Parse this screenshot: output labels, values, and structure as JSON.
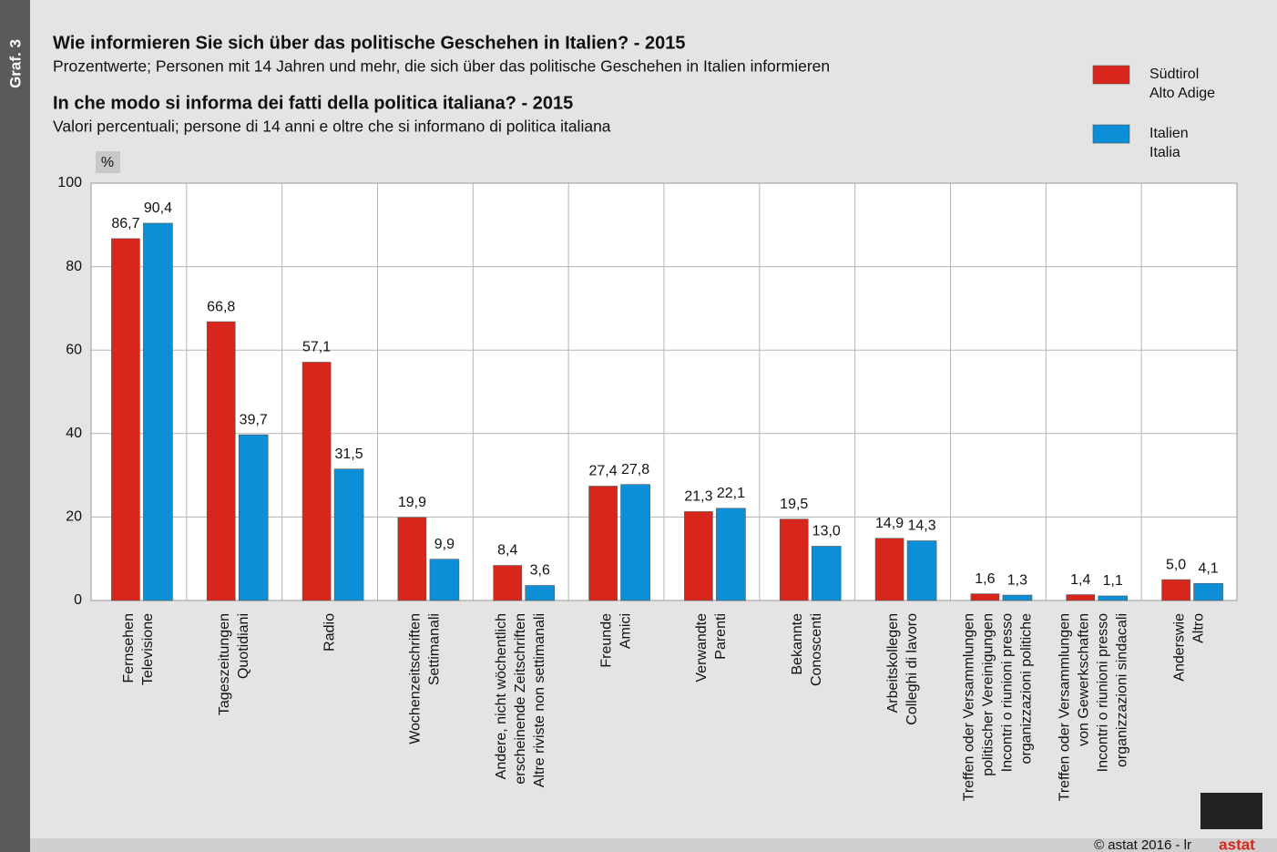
{
  "chart_data": {
    "type": "bar",
    "side_label": "Graf. 3",
    "title": "Wie informieren Sie sich über das politische Geschehen in Italien? - 2015",
    "subtitle": "Prozentwerte; Personen mit 14 Jahren und mehr, die sich über das politische Geschehen in Italien informieren",
    "title2": "In che modo si informa dei fatti della politica italiana? - 2015",
    "subtitle2": "Valori percentuali; persone di 14 anni e oltre che si informano di politica italiana",
    "y_label": "%",
    "footer": "© astat 2016 - lr",
    "logo": "astat",
    "categories": [
      [
        "Fernsehen",
        "Televisione"
      ],
      [
        "Tageszeitungen",
        "Quotidiani"
      ],
      [
        "Radio"
      ],
      [
        "Wochenzeitschriften",
        "Settimanali"
      ],
      [
        "Andere, nicht wöchentlich",
        "erscheinende Zeitschriften",
        "Altre riviste non settimanali"
      ],
      [
        "Freunde",
        "Amici"
      ],
      [
        "Verwandte",
        "Parenti"
      ],
      [
        "Bekannte",
        "Conoscenti"
      ],
      [
        "Arbeitskollegen",
        "Colleghi di lavoro"
      ],
      [
        "Treffen oder Versammlungen",
        "politischer Vereinigungen",
        "Incontri o riunioni presso",
        "organizzazioni politiche"
      ],
      [
        "Treffen oder Versammlungen",
        "von Gewerkschaften",
        "Incontri o riunioni presso",
        "organizzazioni sindacali"
      ],
      [
        "Anderswie",
        "Altro"
      ]
    ],
    "series": [
      {
        "name": [
          "Südtirol",
          "Alto Adige"
        ],
        "color": "#d9261c",
        "values": [
          86.7,
          66.8,
          57.1,
          19.9,
          8.4,
          27.4,
          21.3,
          19.5,
          14.9,
          1.6,
          1.4,
          5.0
        ],
        "value_labels": [
          "86,7",
          "66,8",
          "57,1",
          "19,9",
          "8,4",
          "27,4",
          "21,3",
          "19,5",
          "14,9",
          "1,6",
          "1,4",
          "5,0"
        ]
      },
      {
        "name": [
          "Italien",
          "Italia"
        ],
        "color": "#0d8fd8",
        "values": [
          90.4,
          39.7,
          31.5,
          9.9,
          3.6,
          27.8,
          22.1,
          13.0,
          14.3,
          1.3,
          1.1,
          4.1
        ],
        "value_labels": [
          "90,4",
          "39,7",
          "31,5",
          "9,9",
          "3,6",
          "27,8",
          "22,1",
          "13,0",
          "14,3",
          "1,3",
          "1,1",
          "4,1"
        ]
      }
    ],
    "ylim": [
      0,
      100
    ],
    "yticks": [
      0,
      20,
      40,
      60,
      80,
      100
    ],
    "grid": true
  }
}
